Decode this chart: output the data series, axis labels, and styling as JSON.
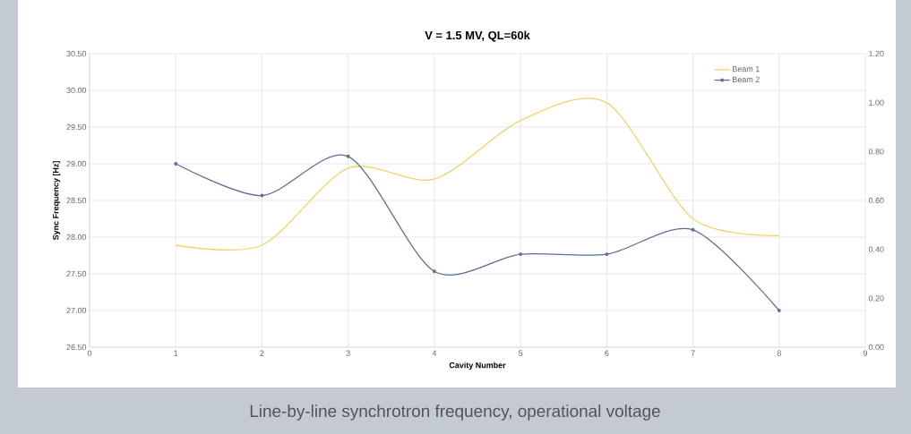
{
  "chart_data": {
    "type": "line",
    "title": "V = 1.5 MV, QL=60k",
    "xlabel": "Cavity Number",
    "ylabel": "Sync Frequency [Hz]",
    "x": [
      1,
      2,
      3,
      4,
      5,
      6,
      7,
      8
    ],
    "series": [
      {
        "name": "Beam 1",
        "color": "#f0d46a",
        "values": [
          27.89,
          27.89,
          28.94,
          28.79,
          29.59,
          29.83,
          28.25,
          28.02
        ],
        "marker": "none"
      },
      {
        "name": "Beam 2",
        "color": "#5c6f97",
        "axis": "y2",
        "values": [
          0.75,
          0.62,
          0.78,
          0.31,
          0.38,
          0.38,
          0.48,
          0.15
        ],
        "marker": "circle"
      }
    ],
    "xlim": [
      0,
      9
    ],
    "xticks": [
      0,
      1,
      2,
      3,
      4,
      5,
      6,
      7,
      8,
      9
    ],
    "ylim": [
      26.5,
      30.5
    ],
    "yticks": [
      {
        "value": 26.5,
        "label": "26.50"
      },
      {
        "value": 27,
        "label": "27.00"
      },
      {
        "value": 27.5,
        "label": "27.50"
      },
      {
        "value": 28,
        "label": "28.00"
      },
      {
        "value": 28.5,
        "label": "28.50"
      },
      {
        "value": 29,
        "label": "29.00"
      },
      {
        "value": 29.5,
        "label": "29.50"
      },
      {
        "value": 30,
        "label": "30.00"
      },
      {
        "value": 30.5,
        "label": "30.50"
      }
    ],
    "y2lim": [
      0,
      1.2
    ],
    "y2ticks": [
      {
        "value": 0,
        "label": "0.00"
      },
      {
        "value": 0.2,
        "label": "0.20"
      },
      {
        "value": 0.4,
        "label": "0.40"
      },
      {
        "value": 0.6,
        "label": "0.60"
      },
      {
        "value": 0.8,
        "label": "0.80"
      },
      {
        "value": 1,
        "label": "1.00"
      },
      {
        "value": 1.2,
        "label": "1.20"
      }
    ],
    "grid": true,
    "legend": "top right",
    "line_style": "solid",
    "annotations": [
      "Line-by-line synchrotron frequency, operational voltage"
    ]
  }
}
